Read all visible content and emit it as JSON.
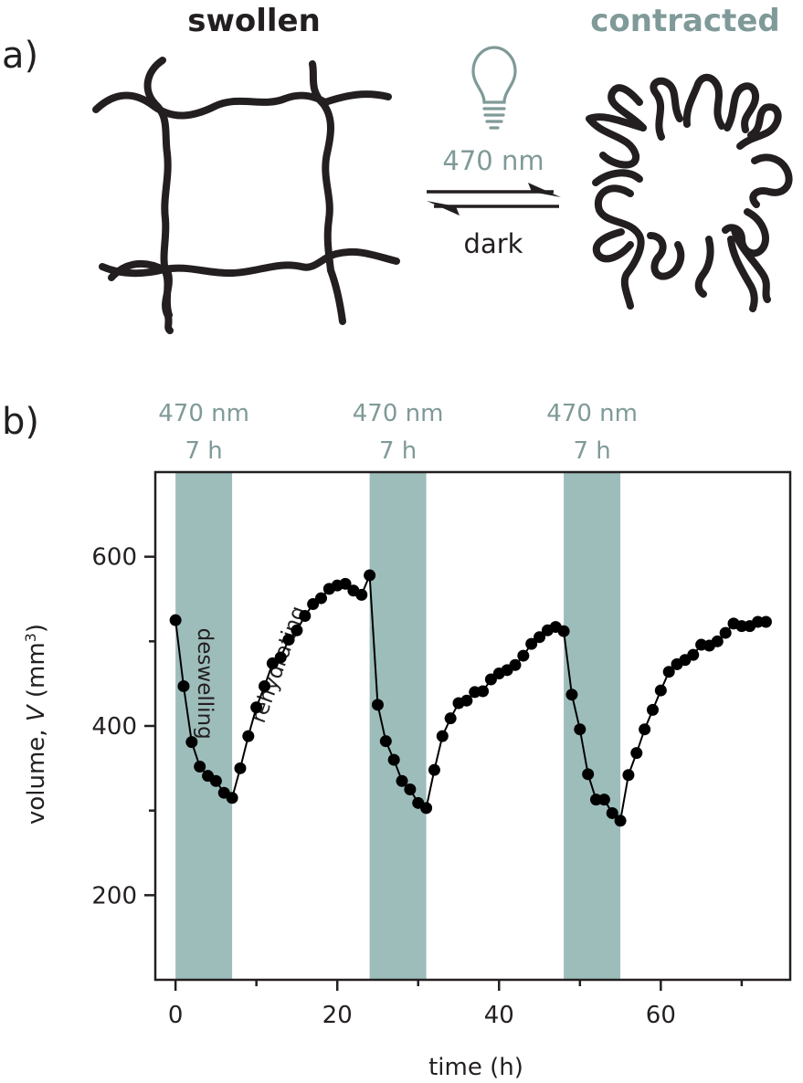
{
  "panel_a": {
    "label": "a)",
    "left_state": "swollen",
    "right_state": "contracted",
    "forward_condition": "470 nm",
    "reverse_condition": "dark",
    "light_icon": "light-bulb-icon"
  },
  "panel_b": {
    "label": "b)"
  },
  "colors": {
    "text": "#231f20",
    "accent": "#7f9a98",
    "band": "#9dbdbb",
    "markers": "#000000"
  },
  "chart_data": {
    "type": "scatter",
    "xlabel": "time (h)",
    "ylabel_prefix": "volume, ",
    "ylabel_var": "V",
    "ylabel_unit_open": " (mm",
    "ylabel_unit_sup": "3",
    "ylabel_unit_close": ")",
    "xlim": [
      -2.5,
      76
    ],
    "ylim": [
      100,
      700
    ],
    "xticks": [
      0,
      20,
      40,
      60
    ],
    "xticks_minor": [
      10,
      30,
      50,
      70
    ],
    "yticks": [
      200,
      400,
      600
    ],
    "yticks_minor": [
      300,
      500
    ],
    "grid": false,
    "illumination_periods": [
      {
        "start": 0,
        "end": 7,
        "label_line1": "470 nm",
        "label_line2": "7 h"
      },
      {
        "start": 24,
        "end": 31,
        "label_line1": "470 nm",
        "label_line2": "7 h"
      },
      {
        "start": 48,
        "end": 55,
        "label_line1": "470 nm",
        "label_line2": "7 h"
      }
    ],
    "annotations": [
      {
        "text": "deswelling",
        "x": 2.8,
        "y": 450,
        "rotate": 90
      },
      {
        "text": "rehydrating",
        "x": 13.5,
        "y": 470,
        "rotate": -70
      }
    ],
    "series": [
      {
        "x": [
          0,
          1,
          2,
          3,
          4,
          5,
          6,
          7,
          8,
          9,
          10,
          11,
          12,
          13,
          14,
          15,
          16,
          17,
          18,
          19,
          20,
          21,
          22,
          23,
          24,
          25,
          26,
          27,
          28,
          29,
          30,
          31,
          32,
          33,
          34,
          35,
          36,
          37,
          38,
          39,
          40,
          41,
          42,
          43,
          44,
          45,
          46,
          47,
          48,
          49,
          50,
          51,
          52,
          53,
          54,
          55,
          56,
          57,
          58,
          59,
          60,
          61,
          62,
          63,
          64,
          65,
          66,
          67,
          68,
          69,
          70,
          71,
          72,
          73
        ],
        "y": [
          525,
          447,
          381,
          352,
          341,
          335,
          321,
          315,
          350,
          388,
          422,
          447,
          474,
          481,
          502,
          513,
          530,
          544,
          551,
          562,
          566,
          568,
          560,
          555,
          578,
          425,
          382,
          360,
          335,
          325,
          309,
          303,
          348,
          388,
          409,
          427,
          430,
          440,
          441,
          455,
          462,
          466,
          472,
          483,
          497,
          505,
          513,
          517,
          512,
          437,
          396,
          343,
          313,
          313,
          297,
          288,
          342,
          368,
          396,
          419,
          442,
          464,
          473,
          478,
          484,
          496,
          495,
          500,
          510,
          521,
          518,
          518,
          523,
          523
        ]
      }
    ]
  }
}
